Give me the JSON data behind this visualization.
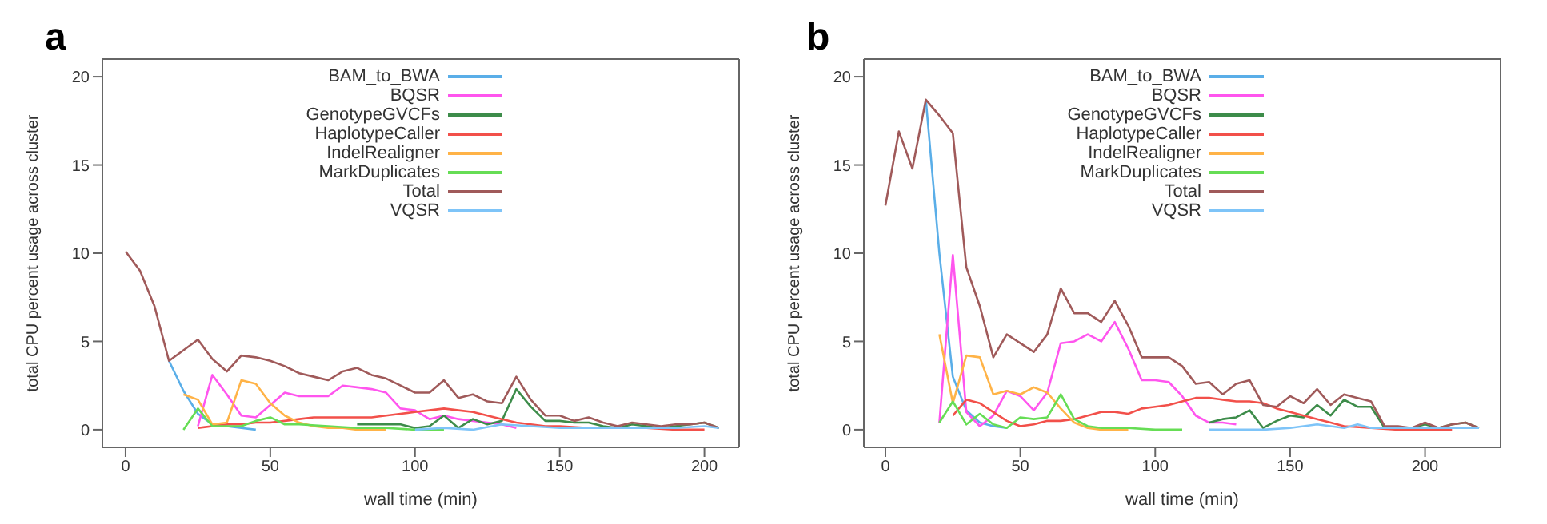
{
  "chart_data": [
    {
      "type": "line",
      "title": "a",
      "xlabel": "wall time (min)",
      "ylabel": "total CPU percent usage across cluster",
      "xlim": [
        -8,
        212
      ],
      "xticks": [
        0,
        50,
        100,
        150,
        200
      ],
      "ylim": [
        -1,
        21
      ],
      "yticks": [
        0,
        5,
        10,
        15,
        20
      ],
      "grid": false,
      "legend": "top",
      "marker": "none",
      "line_style": "solid",
      "series": [
        {
          "name": "BAM_to_BWA",
          "color": "#5aaee8",
          "x": [
            15,
            20,
            25,
            30,
            35,
            40,
            45
          ],
          "values": [
            3.9,
            2.2,
            0.9,
            0.3,
            0.2,
            0.1,
            0
          ]
        },
        {
          "name": "BQSR",
          "color": "#ff55ee",
          "x": [
            25,
            30,
            35,
            40,
            45,
            50,
            55,
            60,
            65,
            70,
            75,
            80,
            85,
            90,
            95,
            100,
            105,
            110,
            115,
            120,
            125,
            130,
            135
          ],
          "values": [
            0.2,
            3.1,
            2,
            0.8,
            0.7,
            1.4,
            2.1,
            1.9,
            1.9,
            1.9,
            2.5,
            2.4,
            2.3,
            2.1,
            1.2,
            1.1,
            0.6,
            0.8,
            0.6,
            0.5,
            0.4,
            0.3,
            0.1
          ]
        },
        {
          "name": "GenotypeGVCFs",
          "color": "#3d8c4a",
          "x": [
            80,
            85,
            90,
            95,
            100,
            105,
            110,
            115,
            120,
            125,
            130,
            135,
            140,
            145,
            150,
            155,
            160,
            165,
            170,
            175,
            180,
            185,
            190,
            195,
            200,
            205
          ],
          "values": [
            0.3,
            0.3,
            0.3,
            0.3,
            0.1,
            0.2,
            0.8,
            0.1,
            0.6,
            0.3,
            0.5,
            2.3,
            1.3,
            0.5,
            0.5,
            0.4,
            0.4,
            0.2,
            0.1,
            0.3,
            0.2,
            0.1,
            0.2,
            0.3,
            0.4,
            0.1
          ]
        },
        {
          "name": "HaplotypeCaller",
          "color": "#f2504a",
          "x": [
            25,
            30,
            35,
            40,
            45,
            50,
            55,
            60,
            65,
            70,
            75,
            80,
            85,
            90,
            95,
            100,
            105,
            110,
            115,
            120,
            125,
            130,
            135,
            140,
            145,
            150,
            160,
            170,
            180,
            190,
            200
          ],
          "values": [
            0.1,
            0.2,
            0.3,
            0.3,
            0.4,
            0.4,
            0.5,
            0.6,
            0.7,
            0.7,
            0.7,
            0.7,
            0.7,
            0.8,
            0.9,
            1,
            1.1,
            1.2,
            1.1,
            1,
            0.8,
            0.6,
            0.4,
            0.3,
            0.2,
            0.2,
            0.1,
            0.1,
            0.1,
            0,
            0
          ]
        },
        {
          "name": "IndelRealigner",
          "color": "#ffb347",
          "x": [
            20,
            25,
            30,
            35,
            40,
            45,
            50,
            55,
            60,
            65,
            70,
            75,
            80,
            90
          ],
          "values": [
            2,
            1.7,
            0.3,
            0.4,
            2.8,
            2.6,
            1.5,
            0.8,
            0.4,
            0.2,
            0.1,
            0.1,
            0,
            0
          ]
        },
        {
          "name": "MarkDuplicates",
          "color": "#66dd55",
          "x": [
            20,
            25,
            30,
            35,
            40,
            45,
            50,
            55,
            60,
            70,
            80,
            90,
            100,
            110
          ],
          "values": [
            0,
            1.2,
            0.2,
            0.2,
            0.2,
            0.5,
            0.7,
            0.3,
            0.3,
            0.2,
            0.1,
            0.1,
            0,
            0
          ]
        },
        {
          "name": "Total",
          "color": "#a05a5a",
          "x": [
            0,
            5,
            10,
            15,
            20,
            25,
            30,
            35,
            40,
            45,
            50,
            55,
            60,
            65,
            70,
            75,
            80,
            85,
            90,
            95,
            100,
            105,
            110,
            115,
            120,
            125,
            130,
            135,
            140,
            145,
            150,
            155,
            160,
            165,
            170,
            175,
            180,
            185,
            190,
            195,
            200,
            205
          ],
          "values": [
            10.1,
            9,
            7,
            3.9,
            4.5,
            5.1,
            4,
            3.3,
            4.2,
            4.1,
            3.9,
            3.6,
            3.2,
            3,
            2.8,
            3.3,
            3.5,
            3.1,
            2.9,
            2.5,
            2.1,
            2.1,
            2.8,
            1.8,
            2,
            1.6,
            1.5,
            3,
            1.7,
            0.8,
            0.8,
            0.5,
            0.7,
            0.4,
            0.2,
            0.4,
            0.3,
            0.2,
            0.3,
            0.3,
            0.4,
            0.1
          ]
        },
        {
          "name": "VQSR",
          "color": "#7ec4f8",
          "x": [
            100,
            110,
            120,
            130,
            140,
            150,
            160,
            170,
            180,
            190,
            200,
            205
          ],
          "values": [
            0,
            0.1,
            0,
            0.3,
            0.2,
            0.1,
            0.1,
            0.1,
            0.1,
            0.1,
            0.2,
            0.1
          ]
        }
      ]
    },
    {
      "type": "line",
      "title": "b",
      "xlabel": "wall time (min)",
      "ylabel": "total CPU percent usage across cluster",
      "xlim": [
        -8,
        228
      ],
      "xticks": [
        0,
        50,
        100,
        150,
        200
      ],
      "ylim": [
        -1,
        21
      ],
      "yticks": [
        0,
        5,
        10,
        15,
        20
      ],
      "grid": false,
      "legend": "top",
      "marker": "none",
      "line_style": "solid",
      "series": [
        {
          "name": "BAM_to_BWA",
          "color": "#5aaee8",
          "x": [
            15,
            20,
            25,
            30,
            35,
            40,
            45
          ],
          "values": [
            18.7,
            10,
            3,
            1.1,
            0.4,
            0.2,
            0.1
          ]
        },
        {
          "name": "BQSR",
          "color": "#ff55ee",
          "x": [
            20,
            25,
            30,
            35,
            40,
            45,
            50,
            55,
            60,
            65,
            70,
            75,
            80,
            85,
            90,
            95,
            100,
            105,
            110,
            115,
            120,
            125,
            130
          ],
          "values": [
            0.4,
            9.9,
            1,
            0.2,
            0.8,
            2.2,
            1.9,
            1.1,
            2.1,
            4.9,
            5,
            5.4,
            5,
            6.1,
            4.6,
            2.8,
            2.8,
            2.7,
            1.9,
            0.8,
            0.4,
            0.4,
            0.3
          ]
        },
        {
          "name": "GenotypeGVCFs",
          "color": "#3d8c4a",
          "x": [
            120,
            125,
            130,
            135,
            140,
            145,
            150,
            155,
            160,
            165,
            170,
            175,
            180,
            185,
            190,
            195,
            200,
            205,
            210,
            215,
            220
          ],
          "values": [
            0.4,
            0.6,
            0.7,
            1.1,
            0.1,
            0.5,
            0.8,
            0.7,
            1.4,
            0.8,
            1.7,
            1.3,
            1.3,
            0.1,
            0.1,
            0.1,
            0.3,
            0.1,
            0.3,
            0.4,
            0.1
          ]
        },
        {
          "name": "HaplotypeCaller",
          "color": "#f2504a",
          "x": [
            25,
            30,
            35,
            40,
            45,
            50,
            55,
            60,
            65,
            70,
            75,
            80,
            85,
            90,
            95,
            100,
            105,
            110,
            115,
            120,
            125,
            130,
            135,
            140,
            145,
            150,
            155,
            160,
            165,
            170,
            180,
            190,
            210
          ],
          "values": [
            0.8,
            1.7,
            1.5,
            1,
            0.5,
            0.2,
            0.3,
            0.5,
            0.5,
            0.6,
            0.8,
            1,
            1,
            0.9,
            1.2,
            1.3,
            1.4,
            1.6,
            1.8,
            1.8,
            1.7,
            1.6,
            1.6,
            1.5,
            1.2,
            1,
            0.8,
            0.6,
            0.4,
            0.2,
            0.1,
            0,
            0
          ]
        },
        {
          "name": "IndelRealigner",
          "color": "#ffb347",
          "x": [
            20,
            25,
            30,
            35,
            40,
            45,
            50,
            55,
            60,
            65,
            70,
            75,
            80,
            90
          ],
          "values": [
            5.4,
            1.5,
            4.2,
            4.1,
            2,
            2.2,
            2,
            2.4,
            2.1,
            1.2,
            0.4,
            0.1,
            0,
            0
          ]
        },
        {
          "name": "MarkDuplicates",
          "color": "#66dd55",
          "x": [
            20,
            25,
            30,
            35,
            40,
            45,
            50,
            55,
            60,
            65,
            70,
            75,
            80,
            90,
            100,
            110
          ],
          "values": [
            0.4,
            1.6,
            0.3,
            0.9,
            0.3,
            0.1,
            0.7,
            0.6,
            0.7,
            2,
            0.6,
            0.2,
            0.1,
            0.1,
            0,
            0
          ]
        },
        {
          "name": "Total",
          "color": "#a05a5a",
          "x": [
            0,
            5,
            10,
            15,
            20,
            25,
            30,
            35,
            40,
            45,
            50,
            55,
            60,
            65,
            70,
            75,
            80,
            85,
            90,
            95,
            100,
            105,
            110,
            115,
            120,
            125,
            130,
            135,
            140,
            145,
            150,
            155,
            160,
            165,
            170,
            175,
            180,
            185,
            190,
            195,
            200,
            205,
            210,
            215,
            220
          ],
          "values": [
            12.7,
            16.9,
            14.8,
            18.7,
            17.8,
            16.8,
            9.2,
            7,
            4.1,
            5.4,
            4.9,
            4.4,
            5.4,
            8,
            6.6,
            6.6,
            6.1,
            7.3,
            5.9,
            4.1,
            4.1,
            4.1,
            3.6,
            2.6,
            2.7,
            2,
            2.6,
            2.8,
            1.4,
            1.3,
            1.9,
            1.5,
            2.3,
            1.4,
            2,
            1.8,
            1.6,
            0.2,
            0.2,
            0.1,
            0.4,
            0.1,
            0.3,
            0.4,
            0.1
          ]
        },
        {
          "name": "VQSR",
          "color": "#7ec4f8",
          "x": [
            120,
            130,
            140,
            150,
            160,
            170,
            175,
            180,
            190,
            200,
            210,
            220
          ],
          "values": [
            0,
            0,
            0,
            0.1,
            0.3,
            0.1,
            0.3,
            0.1,
            0.1,
            0.1,
            0.1,
            0.1
          ]
        }
      ]
    }
  ]
}
